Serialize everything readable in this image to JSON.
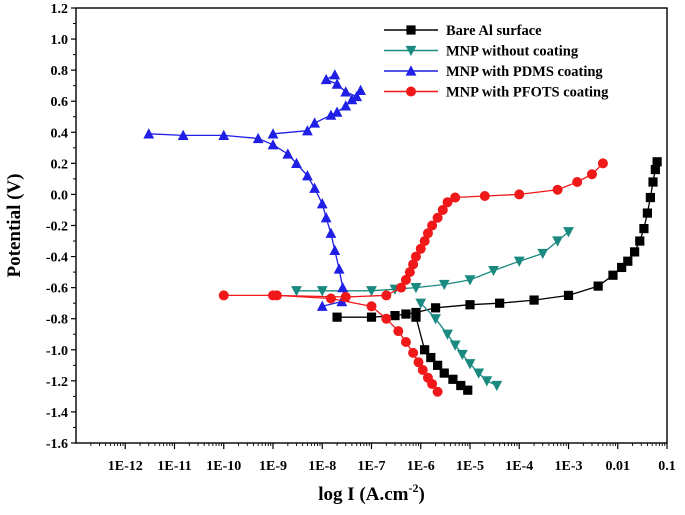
{
  "chart_data": {
    "type": "line",
    "xlabel": "log I (A.cm",
    "xlabel_sup": "-2",
    "xlabel_end": ")",
    "ylabel": "Potential (V)",
    "x_scale": "log",
    "xlim": [
      1e-13,
      0.1
    ],
    "ylim": [
      -1.6,
      1.2
    ],
    "x_ticks": [
      1e-12,
      1e-11,
      1e-10,
      1e-09,
      1e-08,
      1e-07,
      1e-06,
      1e-05,
      0.0001,
      0.001,
      0.01,
      0.1
    ],
    "x_tick_labels": [
      "1E-12",
      "1E-11",
      "1E-10",
      "1E-9",
      "1E-8",
      "1E-7",
      "1E-6",
      "1E-5",
      "1E-4",
      "1E-3",
      "0.01",
      "0.1"
    ],
    "y_ticks": [
      1.2,
      1.0,
      0.8,
      0.6,
      0.4,
      0.2,
      0.0,
      -0.2,
      -0.4,
      -0.6,
      -0.8,
      -1.0,
      -1.2,
      -1.4,
      -1.6
    ],
    "y_tick_labels": [
      "1.2",
      "1.0",
      "0.8",
      "0.6",
      "0.4",
      "0.2",
      "0.0",
      "-0.2",
      "-0.4",
      "-0.6",
      "-0.8",
      "-1.0",
      "-1.2",
      "-1.4",
      "-1.6"
    ],
    "legend_position": "top-right",
    "series": [
      {
        "name": "Bare Al surface",
        "color": "#000000",
        "marker": "square",
        "points": [
          [
            8e-07,
            -0.79
          ],
          [
            1.2e-06,
            -1.0
          ],
          [
            1.6e-06,
            -1.05
          ],
          [
            2.2e-06,
            -1.1
          ],
          [
            3e-06,
            -1.15
          ],
          [
            4.5e-06,
            -1.19
          ],
          [
            6.5e-06,
            -1.23
          ],
          [
            9e-06,
            -1.26
          ]
        ],
        "points_anodic": [
          [
            2e-08,
            -0.79
          ],
          [
            1e-07,
            -0.79
          ],
          [
            3e-07,
            -0.78
          ],
          [
            5e-07,
            -0.77
          ],
          [
            8e-07,
            -0.76
          ],
          [
            2e-06,
            -0.73
          ],
          [
            1e-05,
            -0.71
          ],
          [
            4e-05,
            -0.7
          ],
          [
            0.0002,
            -0.68
          ],
          [
            0.001,
            -0.65
          ],
          [
            0.004,
            -0.59
          ],
          [
            0.008,
            -0.52
          ],
          [
            0.012,
            -0.47
          ],
          [
            0.016,
            -0.43
          ],
          [
            0.022,
            -0.37
          ],
          [
            0.028,
            -0.3
          ],
          [
            0.034,
            -0.22
          ],
          [
            0.04,
            -0.12
          ],
          [
            0.046,
            -0.02
          ],
          [
            0.052,
            0.08
          ],
          [
            0.058,
            0.16
          ],
          [
            0.063,
            0.21
          ]
        ]
      },
      {
        "name": "MNP without coating",
        "color": "#1a8a80",
        "marker": "triangle-down",
        "points": [
          [
            1e-06,
            -0.7
          ],
          [
            2e-06,
            -0.8
          ],
          [
            3.5e-06,
            -0.9
          ],
          [
            5e-06,
            -0.97
          ],
          [
            7e-06,
            -1.03
          ],
          [
            1e-05,
            -1.09
          ],
          [
            1.5e-05,
            -1.15
          ],
          [
            2.2e-05,
            -1.2
          ],
          [
            3.5e-05,
            -1.23
          ]
        ],
        "points_anodic": [
          [
            3e-09,
            -0.62
          ],
          [
            1e-08,
            -0.62
          ],
          [
            1e-07,
            -0.62
          ],
          [
            3e-07,
            -0.61
          ],
          [
            8e-07,
            -0.6
          ],
          [
            3e-06,
            -0.58
          ],
          [
            1e-05,
            -0.55
          ],
          [
            3e-05,
            -0.49
          ],
          [
            0.0001,
            -0.43
          ],
          [
            0.0003,
            -0.38
          ],
          [
            0.0006,
            -0.3
          ],
          [
            0.001,
            -0.24
          ]
        ]
      },
      {
        "name": "MNP with PDMS coating",
        "color": "#1f1fe6",
        "marker": "triangle-up",
        "points": [
          [
            3e-12,
            0.39
          ],
          [
            1.5e-11,
            0.38
          ],
          [
            1e-10,
            0.38
          ],
          [
            5e-10,
            0.36
          ],
          [
            1e-09,
            0.32
          ],
          [
            2e-09,
            0.26
          ],
          [
            3e-09,
            0.2
          ],
          [
            5e-09,
            0.12
          ],
          [
            7e-09,
            0.04
          ],
          [
            1e-08,
            -0.06
          ],
          [
            1.2e-08,
            -0.15
          ],
          [
            1.5e-08,
            -0.25
          ],
          [
            1.8e-08,
            -0.36
          ],
          [
            2.2e-08,
            -0.48
          ],
          [
            2.6e-08,
            -0.6
          ],
          [
            2.8e-08,
            -0.66
          ],
          [
            2.5e-08,
            -0.69
          ],
          [
            1e-08,
            -0.72
          ]
        ],
        "points_anodic": [
          [
            1e-09,
            0.39
          ],
          [
            5e-09,
            0.41
          ],
          [
            7e-09,
            0.46
          ],
          [
            1.5e-08,
            0.51
          ],
          [
            2e-08,
            0.53
          ],
          [
            3e-08,
            0.57
          ],
          [
            4e-08,
            0.61
          ],
          [
            6e-08,
            0.67
          ],
          [
            5e-08,
            0.63
          ],
          [
            3e-08,
            0.66
          ],
          [
            2e-08,
            0.71
          ],
          [
            1.2e-08,
            0.74
          ],
          [
            1.8e-08,
            0.77
          ]
        ]
      },
      {
        "name": "MNP with PFOTS coating",
        "color": "#f01818",
        "marker": "circle",
        "points": [
          [
            1.2e-09,
            -0.65
          ],
          [
            1.5e-08,
            -0.67
          ],
          [
            1e-07,
            -0.72
          ],
          [
            2e-07,
            -0.8
          ],
          [
            3.5e-07,
            -0.88
          ],
          [
            5e-07,
            -0.95
          ],
          [
            7e-07,
            -1.02
          ],
          [
            9e-07,
            -1.08
          ],
          [
            1.1e-06,
            -1.13
          ],
          [
            1.4e-06,
            -1.18
          ],
          [
            1.7e-06,
            -1.22
          ],
          [
            2.2e-06,
            -1.27
          ]
        ],
        "points_anodic": [
          [
            1e-10,
            -0.65
          ],
          [
            1e-09,
            -0.65
          ],
          [
            3e-08,
            -0.66
          ],
          [
            2e-07,
            -0.65
          ],
          [
            4e-07,
            -0.6
          ],
          [
            5e-07,
            -0.55
          ],
          [
            6e-07,
            -0.5
          ],
          [
            7e-07,
            -0.45
          ],
          [
            8e-07,
            -0.4
          ],
          [
            1e-06,
            -0.35
          ],
          [
            1.2e-06,
            -0.3
          ],
          [
            1.4e-06,
            -0.25
          ],
          [
            1.7e-06,
            -0.2
          ],
          [
            2.2e-06,
            -0.15
          ],
          [
            2.8e-06,
            -0.1
          ],
          [
            3.5e-06,
            -0.05
          ],
          [
            5e-06,
            -0.02
          ],
          [
            2e-05,
            -0.01
          ],
          [
            0.0001,
            0.0
          ],
          [
            0.0006,
            0.03
          ],
          [
            0.0015,
            0.08
          ],
          [
            0.003,
            0.13
          ],
          [
            0.005,
            0.2
          ]
        ]
      }
    ]
  }
}
